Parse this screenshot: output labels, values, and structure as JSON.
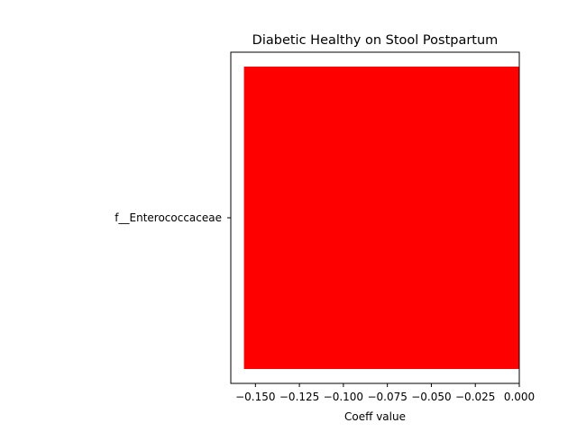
{
  "chart_data": {
    "type": "bar",
    "orientation": "horizontal",
    "title": "Diabetic Healthy on Stool Postpartum",
    "xlabel": "Coeff value",
    "ylabel": "",
    "categories": [
      "f__Enterococcaceae"
    ],
    "values": [
      -0.1565
    ],
    "xlim": [
      -0.164,
      0.0
    ],
    "xticks": [
      -0.15,
      -0.125,
      -0.1,
      -0.075,
      -0.05,
      -0.025,
      0.0
    ],
    "xtick_labels": [
      "−0.150",
      "−0.125",
      "−0.100",
      "−0.075",
      "−0.050",
      "−0.025",
      "0.000"
    ],
    "bar_color": "#ff0000",
    "grid": false,
    "legend": "none"
  }
}
